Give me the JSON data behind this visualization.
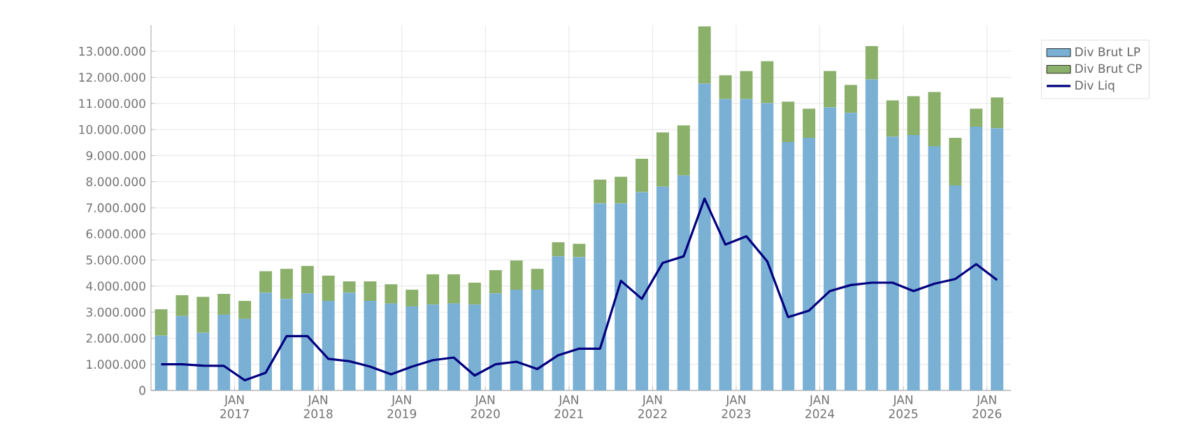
{
  "chart_data": {
    "type": "bar",
    "stacked": true,
    "grid": true,
    "legend": "top right",
    "marker": "none",
    "x": [
      "2016-02-15",
      "2016-05-15",
      "2016-08-15",
      "2016-11-15",
      "2017-02-15",
      "2017-05-15",
      "2017-08-15",
      "2017-11-15",
      "2018-02-15",
      "2018-05-15",
      "2018-08-15",
      "2018-11-15",
      "2019-02-15",
      "2019-05-15",
      "2019-08-15",
      "2019-11-15",
      "2020-02-15",
      "2020-05-15",
      "2020-08-15",
      "2020-11-15",
      "2021-02-15",
      "2021-05-15",
      "2021-08-15",
      "2021-11-15",
      "2022-02-15",
      "2022-05-15",
      "2022-08-15",
      "2022-11-15",
      "2023-02-15",
      "2023-05-15",
      "2023-08-15",
      "2023-11-15",
      "2024-02-15",
      "2024-05-15",
      "2024-08-15",
      "2024-11-15",
      "2025-02-15",
      "2025-05-15",
      "2025-08-15",
      "2025-11-15",
      "2026-02-15"
    ],
    "series": [
      {
        "name": "Div Brut LP",
        "color": "#7ab0d4",
        "values": [
          2100000,
          2850000,
          2210000,
          2900000,
          2740000,
          3750000,
          3510000,
          3720000,
          3430000,
          3750000,
          3430000,
          3330000,
          3220000,
          3290000,
          3330000,
          3290000,
          3720000,
          3860000,
          3860000,
          5140000,
          5110000,
          7170000,
          7170000,
          7600000,
          7810000,
          8240000,
          11760000,
          11170000,
          11170000,
          11010000,
          9520000,
          9680000,
          10850000,
          10640000,
          11920000,
          9730000,
          9790000,
          9360000,
          7860000,
          10110000,
          10050000
        ]
      },
      {
        "name": "Div Brut CP",
        "color": "#8ab06a",
        "values": [
          1010000,
          800000,
          1380000,
          800000,
          690000,
          820000,
          1150000,
          1050000,
          970000,
          430000,
          750000,
          740000,
          640000,
          1160000,
          1120000,
          840000,
          890000,
          1120000,
          800000,
          540000,
          510000,
          910000,
          1020000,
          1280000,
          2080000,
          1920000,
          2190000,
          910000,
          1070000,
          1610000,
          1550000,
          1120000,
          1390000,
          1070000,
          1280000,
          1390000,
          1490000,
          2080000,
          1820000,
          690000,
          1180000
        ]
      },
      {
        "name": "Div Liq",
        "type": "line",
        "color": "#00007f",
        "values": [
          1000000,
          1000000,
          950000,
          940000,
          390000,
          680000,
          2080000,
          2080000,
          1210000,
          1120000,
          910000,
          620000,
          910000,
          1160000,
          1260000,
          570000,
          1000000,
          1100000,
          820000,
          1350000,
          1600000,
          1600000,
          4200000,
          3510000,
          4890000,
          5140000,
          7350000,
          5590000,
          5910000,
          4950000,
          2810000,
          3060000,
          3810000,
          4040000,
          4130000,
          4130000,
          3810000,
          4090000,
          4270000,
          4840000,
          4230000
        ]
      }
    ],
    "xlim": [
      "2016-01-01",
      "2026-04-15"
    ],
    "xticks": [
      {
        "value": "2017-01-01",
        "label": "JAN 2017"
      },
      {
        "value": "2018-01-01",
        "label": "JAN 2018"
      },
      {
        "value": "2019-01-01",
        "label": "JAN 2019"
      },
      {
        "value": "2020-01-01",
        "label": "JAN 2020"
      },
      {
        "value": "2021-01-01",
        "label": "JAN 2021"
      },
      {
        "value": "2022-01-01",
        "label": "JAN 2022"
      },
      {
        "value": "2023-01-01",
        "label": "JAN 2023"
      },
      {
        "value": "2024-01-01",
        "label": "JAN 2024"
      },
      {
        "value": "2025-01-01",
        "label": "JAN 2025"
      },
      {
        "value": "2026-01-01",
        "label": "JAN 2026"
      }
    ],
    "ylim": [
      0,
      14000000
    ],
    "yticks": [
      0,
      {
        "value": 1000000,
        "label": "1.000.000"
      },
      {
        "value": 2000000,
        "label": "2.000.000"
      },
      {
        "value": 3000000,
        "label": "3.000.000"
      },
      {
        "value": 4000000,
        "label": "4.000.000"
      },
      {
        "value": 5000000,
        "label": "5.000.000"
      },
      {
        "value": 6000000,
        "label": "6.000.000"
      },
      {
        "value": 7000000,
        "label": "7.000.000"
      },
      {
        "value": 8000000,
        "label": "8.000.000"
      },
      {
        "value": 9000000,
        "label": "9.000.000"
      },
      {
        "value": 10000000,
        "label": "10.000.000"
      },
      {
        "value": 11000000,
        "label": "11.000.000"
      },
      {
        "value": 12000000,
        "label": "12.000.000"
      },
      {
        "value": 13000000,
        "label": "13.000.000"
      }
    ]
  }
}
